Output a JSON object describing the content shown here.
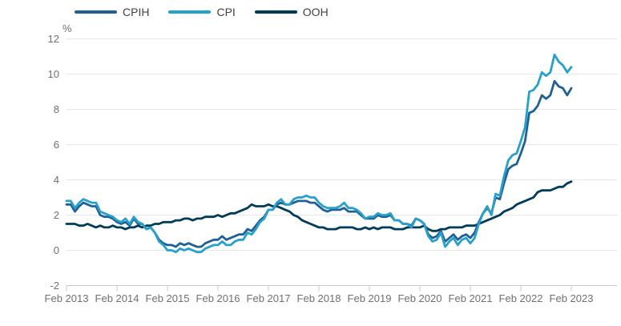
{
  "legend": {
    "items": [
      {
        "label": "CPIH"
      },
      {
        "label": "CPI"
      },
      {
        "label": "OOH"
      }
    ]
  },
  "axis": {
    "unit_label": "%"
  },
  "chart_data": {
    "type": "line",
    "title": "",
    "ylabel": "%",
    "xlabel": "",
    "ylim": [
      -2,
      12
    ],
    "y_ticks": [
      -2,
      0,
      2,
      4,
      6,
      8,
      10,
      12
    ],
    "x_tick_labels": [
      "Feb 2013",
      "Feb 2014",
      "Feb 2015",
      "Feb 2016",
      "Feb 2017",
      "Feb 2018",
      "Feb 2019",
      "Feb 2020",
      "Feb 2021",
      "Feb 2022",
      "Feb 2023"
    ],
    "x_start": "Feb 2013",
    "x_end": "Feb 2023",
    "x_frequency": "monthly",
    "grid": "horizontal",
    "legend_position": "top",
    "colors": {
      "cpih": "#206095",
      "cpi": "#27A0CC",
      "ooh": "#003C57",
      "gridline": "#e7e7e7",
      "axis": "#c9c9c9",
      "tick_text": "#707070"
    },
    "series": [
      {
        "name": "CPIH",
        "color": "#206095",
        "values": [
          2.6,
          2.6,
          2.2,
          2.5,
          2.7,
          2.6,
          2.5,
          2.5,
          2.0,
          1.9,
          1.9,
          1.8,
          1.6,
          1.5,
          1.6,
          1.4,
          1.8,
          1.5,
          1.5,
          1.2,
          1.3,
          1.0,
          0.6,
          0.4,
          0.3,
          0.3,
          0.2,
          0.4,
          0.3,
          0.4,
          0.3,
          0.2,
          0.2,
          0.4,
          0.5,
          0.6,
          0.6,
          0.8,
          0.6,
          0.7,
          0.8,
          0.9,
          0.9,
          1.2,
          1.1,
          1.4,
          1.7,
          1.9,
          2.3,
          2.3,
          2.6,
          2.7,
          2.6,
          2.6,
          2.7,
          2.8,
          2.8,
          2.8,
          2.7,
          2.7,
          2.5,
          2.3,
          2.2,
          2.3,
          2.3,
          2.3,
          2.4,
          2.2,
          2.2,
          2.2,
          2.0,
          1.8,
          1.8,
          1.8,
          2.0,
          1.9,
          1.9,
          2.0,
          1.7,
          1.7,
          1.5,
          1.5,
          1.4,
          1.8,
          1.7,
          1.5,
          0.9,
          0.7,
          0.8,
          1.1,
          0.5,
          0.7,
          0.9,
          0.6,
          0.8,
          0.9,
          0.7,
          1.0,
          1.6,
          2.1,
          2.4,
          2.1,
          3.0,
          2.9,
          3.8,
          4.6,
          4.8,
          4.9,
          5.5,
          6.2,
          7.8,
          7.9,
          8.2,
          8.8,
          8.6,
          8.8,
          9.6,
          9.3,
          9.2,
          8.8,
          9.2
        ]
      },
      {
        "name": "CPI",
        "color": "#27A0CC",
        "values": [
          2.8,
          2.8,
          2.4,
          2.7,
          2.9,
          2.8,
          2.7,
          2.7,
          2.2,
          2.1,
          2.0,
          1.9,
          1.7,
          1.6,
          1.8,
          1.5,
          1.9,
          1.6,
          1.5,
          1.2,
          1.3,
          1.0,
          0.5,
          0.3,
          0.0,
          0.0,
          -0.1,
          0.1,
          0.0,
          0.1,
          0.0,
          -0.1,
          -0.1,
          0.1,
          0.2,
          0.3,
          0.3,
          0.5,
          0.3,
          0.3,
          0.5,
          0.6,
          0.6,
          1.0,
          0.9,
          1.2,
          1.6,
          1.8,
          2.3,
          2.3,
          2.7,
          2.9,
          2.6,
          2.6,
          2.9,
          3.0,
          3.0,
          3.1,
          3.0,
          3.0,
          2.7,
          2.5,
          2.4,
          2.4,
          2.4,
          2.5,
          2.7,
          2.4,
          2.4,
          2.3,
          2.1,
          1.8,
          1.9,
          1.9,
          2.1,
          2.0,
          2.0,
          2.1,
          1.7,
          1.7,
          1.5,
          1.5,
          1.3,
          1.8,
          1.7,
          1.5,
          0.8,
          0.5,
          0.6,
          1.0,
          0.2,
          0.5,
          0.7,
          0.3,
          0.6,
          0.7,
          0.4,
          0.7,
          1.5,
          2.1,
          2.5,
          2.0,
          3.2,
          3.1,
          4.2,
          5.1,
          5.4,
          5.5,
          6.2,
          7.0,
          9.0,
          9.1,
          9.4,
          10.1,
          9.9,
          10.1,
          11.1,
          10.7,
          10.5,
          10.1,
          10.4
        ]
      },
      {
        "name": "OOH",
        "color": "#003C57",
        "values": [
          1.5,
          1.5,
          1.5,
          1.4,
          1.4,
          1.5,
          1.4,
          1.3,
          1.4,
          1.3,
          1.3,
          1.4,
          1.3,
          1.3,
          1.2,
          1.3,
          1.3,
          1.4,
          1.3,
          1.4,
          1.4,
          1.5,
          1.5,
          1.6,
          1.6,
          1.6,
          1.7,
          1.7,
          1.8,
          1.8,
          1.7,
          1.8,
          1.8,
          1.9,
          1.9,
          1.9,
          2.0,
          1.9,
          2.0,
          2.1,
          2.1,
          2.2,
          2.3,
          2.4,
          2.6,
          2.5,
          2.5,
          2.5,
          2.6,
          2.5,
          2.5,
          2.4,
          2.3,
          2.2,
          2.0,
          1.9,
          1.7,
          1.6,
          1.5,
          1.4,
          1.3,
          1.3,
          1.2,
          1.2,
          1.2,
          1.3,
          1.3,
          1.3,
          1.3,
          1.2,
          1.2,
          1.3,
          1.2,
          1.3,
          1.2,
          1.3,
          1.3,
          1.3,
          1.2,
          1.2,
          1.2,
          1.3,
          1.3,
          1.3,
          1.3,
          1.4,
          1.2,
          1.1,
          1.1,
          1.2,
          1.2,
          1.3,
          1.3,
          1.3,
          1.3,
          1.4,
          1.4,
          1.4,
          1.5,
          1.6,
          1.7,
          1.8,
          1.9,
          2.0,
          2.2,
          2.3,
          2.4,
          2.6,
          2.7,
          2.8,
          2.9,
          3.0,
          3.3,
          3.4,
          3.4,
          3.4,
          3.5,
          3.6,
          3.6,
          3.8,
          3.9
        ]
      }
    ]
  }
}
